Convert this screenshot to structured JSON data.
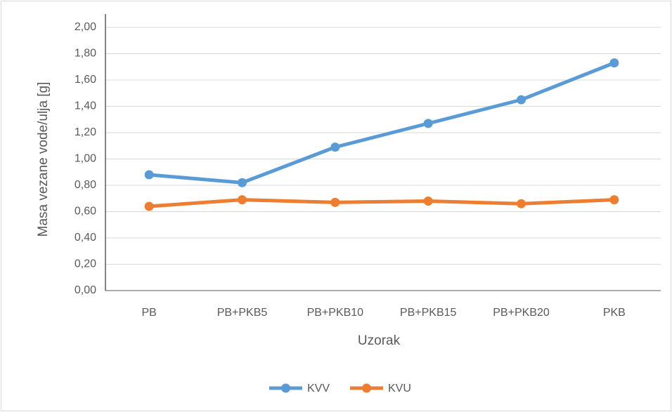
{
  "chart_data": {
    "type": "line",
    "x_label": "Uzorak",
    "y_label": "Masa vezane vode/ulja [g]",
    "categories": [
      "PB",
      "PB+PKB5",
      "PB+PKB10",
      "PB+PKB15",
      "PB+PKB20",
      "PKB"
    ],
    "series": [
      {
        "name": "KVV",
        "color": "#5b9bd5",
        "values": [
          0.88,
          0.82,
          1.09,
          1.27,
          1.45,
          1.73
        ]
      },
      {
        "name": "KVU",
        "color": "#ed7d31",
        "values": [
          0.64,
          0.69,
          0.67,
          0.68,
          0.66,
          0.69
        ]
      }
    ],
    "ylim": [
      0,
      2
    ],
    "yticks": [
      {
        "value": 0,
        "label": "0,00"
      },
      {
        "value": 0.2,
        "label": "0,20"
      },
      {
        "value": 0.4,
        "label": "0,40"
      },
      {
        "value": 0.6,
        "label": "0,60"
      },
      {
        "value": 0.8,
        "label": "0,80"
      },
      {
        "value": 1,
        "label": "1,00"
      },
      {
        "value": 1.2,
        "label": "1,20"
      },
      {
        "value": 1.4,
        "label": "1,40"
      },
      {
        "value": 1.6,
        "label": "1,60"
      },
      {
        "value": 1.8,
        "label": "1,80"
      },
      {
        "value": 2,
        "label": "2,00"
      }
    ],
    "grid": true,
    "legend": "bottom"
  }
}
